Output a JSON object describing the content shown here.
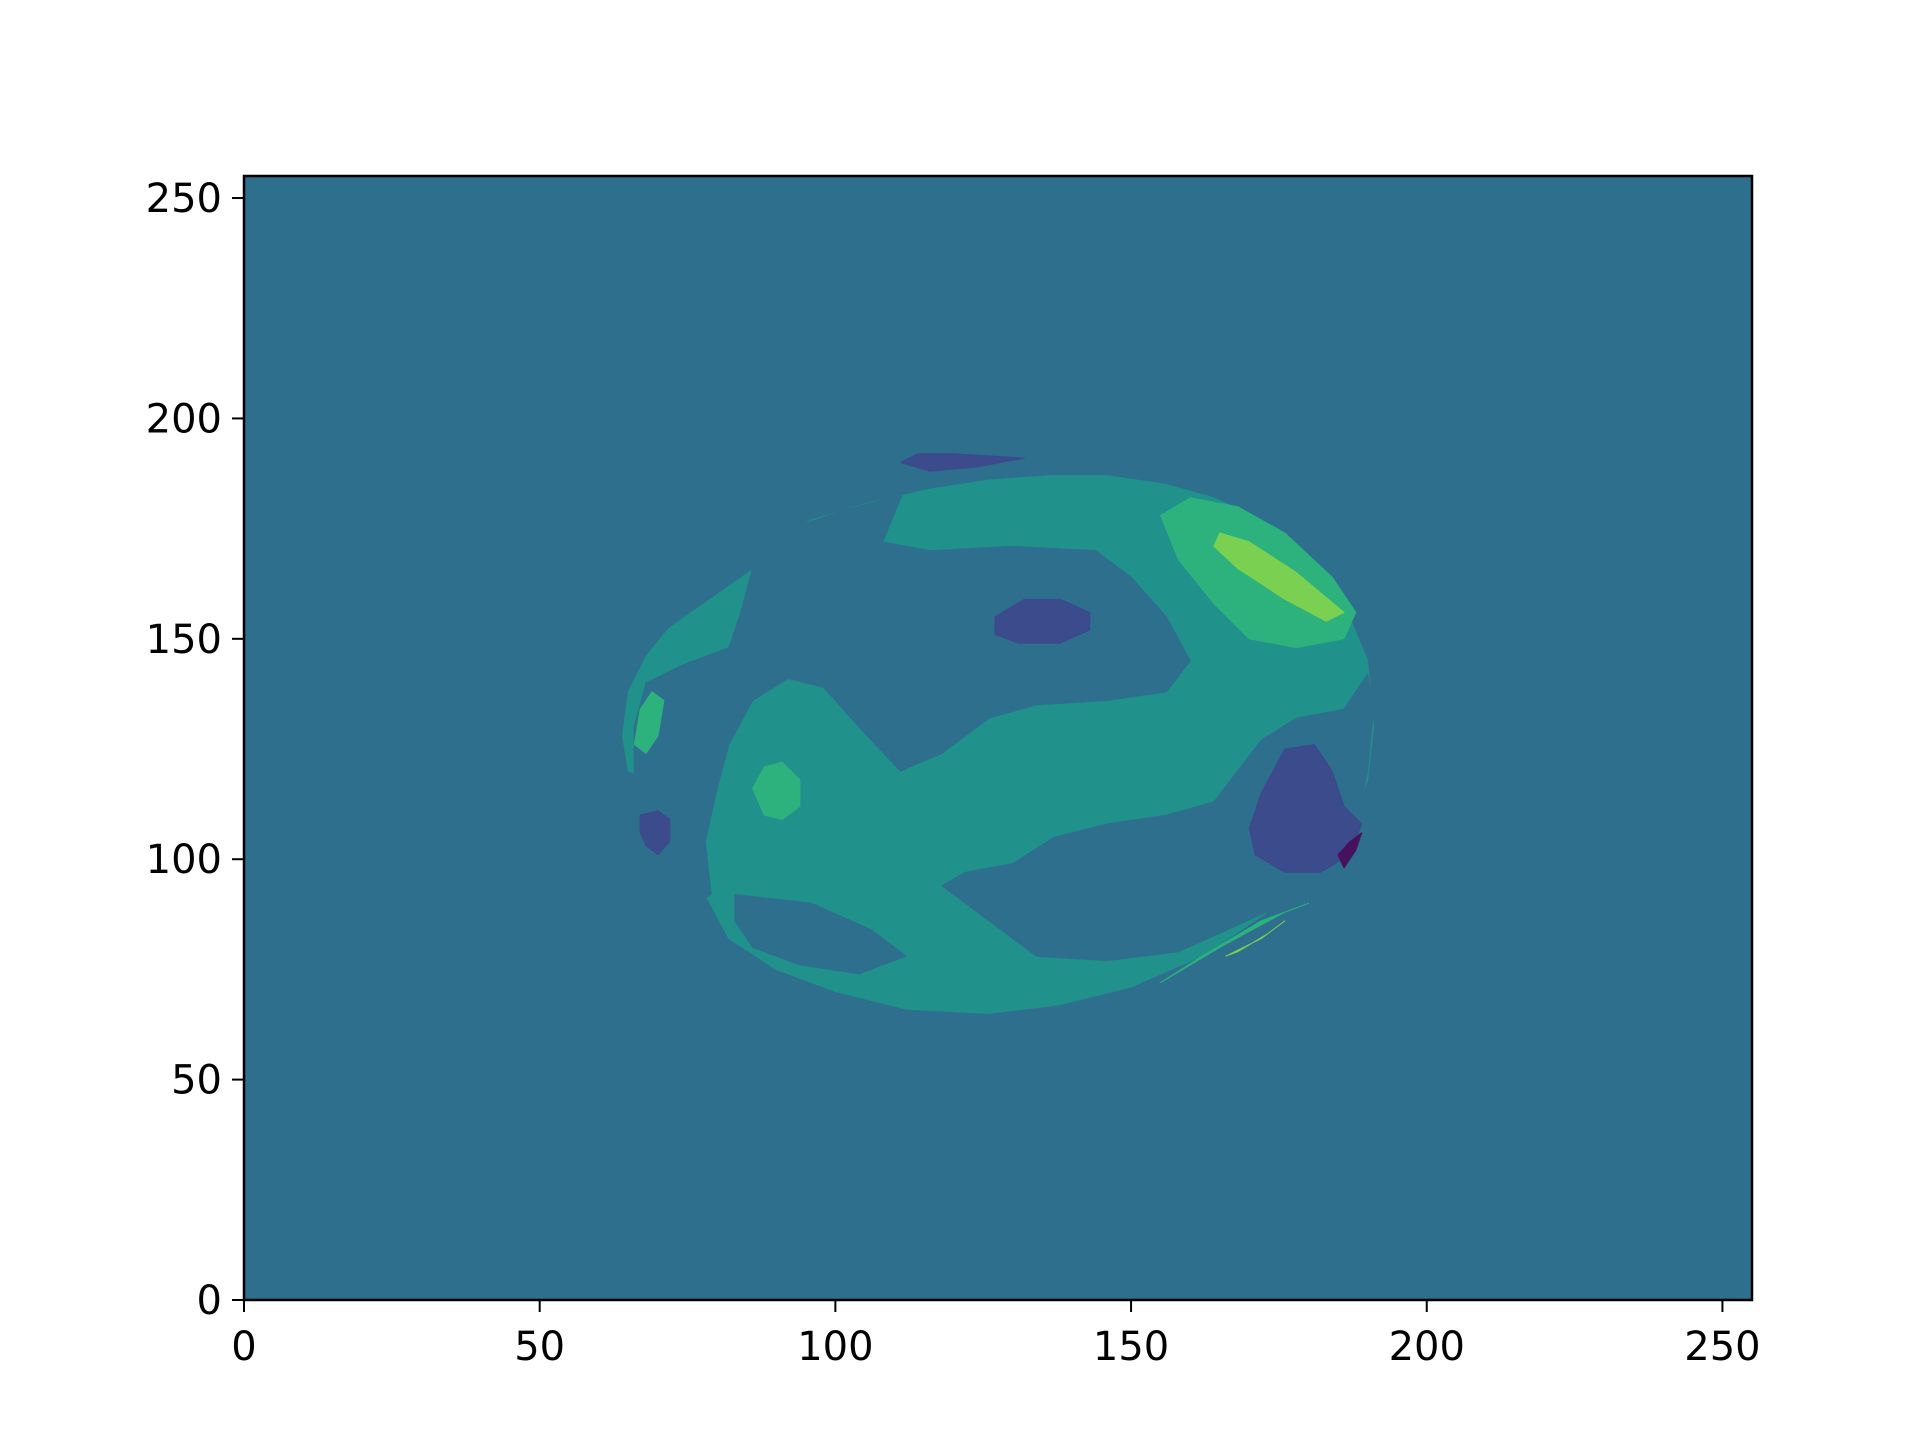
{
  "chart_data": {
    "type": "contourf",
    "title": "",
    "xlabel": "",
    "ylabel": "",
    "xlim": [
      0,
      255
    ],
    "ylim": [
      0,
      255
    ],
    "x_ticks": [
      0,
      50,
      100,
      150,
      200,
      250
    ],
    "y_ticks": [
      0,
      50,
      100,
      150,
      200,
      250
    ],
    "x_tick_labels": [
      "0",
      "50",
      "100",
      "150",
      "200",
      "250"
    ],
    "y_tick_labels": [
      "0",
      "50",
      "100",
      "150",
      "200",
      "250"
    ],
    "grid": false,
    "legend": "none",
    "colormap": "viridis",
    "colors": {
      "background_level": "#2e6f8e",
      "disk_level": "#21918c",
      "low_level": "#3b4b8b",
      "lowest_level": "#46125e",
      "high_level": "#2db27d",
      "highest_level": "#7ad151",
      "axes_edge": "#000000"
    },
    "regions": [
      {
        "name": "disk",
        "level": "disk_level",
        "points": [
          [
            65,
            138
          ],
          [
            68,
            146
          ],
          [
            74,
            156
          ],
          [
            82,
            166
          ],
          [
            88,
            171
          ],
          [
            96,
            177
          ],
          [
            106,
            181
          ],
          [
            116,
            184
          ],
          [
            126,
            186
          ],
          [
            136,
            187
          ],
          [
            146,
            187
          ],
          [
            156,
            185
          ],
          [
            164,
            182
          ],
          [
            172,
            177
          ],
          [
            180,
            169
          ],
          [
            186,
            158
          ],
          [
            190,
            145
          ],
          [
            191,
            130
          ],
          [
            190,
            118
          ],
          [
            186,
            105
          ],
          [
            180,
            95
          ],
          [
            172,
            87
          ],
          [
            162,
            78
          ],
          [
            150,
            71
          ],
          [
            138,
            67
          ],
          [
            126,
            65
          ],
          [
            112,
            66
          ],
          [
            100,
            70
          ],
          [
            90,
            75
          ],
          [
            82,
            82
          ],
          [
            78,
            92
          ],
          [
            76,
            104
          ],
          [
            74,
            114
          ],
          [
            70,
            118
          ],
          [
            65,
            120
          ],
          [
            64,
            128
          ]
        ]
      },
      {
        "name": "bg-lobe-upper-left",
        "level": "background_level",
        "points": [
          [
            68,
            149
          ],
          [
            72,
            157
          ],
          [
            78,
            166
          ],
          [
            86,
            172
          ],
          [
            101,
            179
          ],
          [
            112,
            183
          ],
          [
            128,
            188
          ],
          [
            112,
            185
          ],
          [
            108,
            172
          ],
          [
            116,
            170
          ],
          [
            130,
            171
          ],
          [
            144,
            170
          ],
          [
            150,
            164
          ],
          [
            156,
            155
          ],
          [
            160,
            145
          ],
          [
            156,
            138
          ],
          [
            146,
            136
          ],
          [
            134,
            135
          ],
          [
            126,
            132
          ],
          [
            118,
            124
          ],
          [
            111,
            120
          ],
          [
            104,
            130
          ],
          [
            98,
            139
          ],
          [
            92,
            141
          ],
          [
            86,
            136
          ],
          [
            82,
            126
          ],
          [
            80,
            116
          ],
          [
            78,
            104
          ],
          [
            79,
            92
          ],
          [
            74,
            88
          ],
          [
            72,
            96
          ],
          [
            72,
            108
          ],
          [
            70,
            114
          ],
          [
            66,
            118
          ],
          [
            66,
            130
          ],
          [
            68,
            140
          ],
          [
            74,
            144
          ],
          [
            82,
            148
          ],
          [
            84,
            156
          ],
          [
            86,
            166
          ]
        ]
      },
      {
        "name": "bg-lobe-right",
        "level": "background_level",
        "points": [
          [
            190,
            142
          ],
          [
            186,
            134
          ],
          [
            178,
            132
          ],
          [
            172,
            127
          ],
          [
            168,
            120
          ],
          [
            164,
            113
          ],
          [
            156,
            110
          ],
          [
            146,
            108
          ],
          [
            137,
            105
          ],
          [
            130,
            99
          ],
          [
            122,
            97
          ],
          [
            118,
            94
          ],
          [
            128,
            84
          ],
          [
            134,
            78
          ],
          [
            146,
            77
          ],
          [
            158,
            79
          ],
          [
            168,
            85
          ],
          [
            176,
            90
          ],
          [
            184,
            98
          ],
          [
            188,
            108
          ],
          [
            190,
            120
          ],
          [
            191,
            134
          ]
        ]
      },
      {
        "name": "bg-lobe-bottom",
        "level": "background_level",
        "points": [
          [
            83,
            92
          ],
          [
            96,
            90
          ],
          [
            106,
            84
          ],
          [
            112,
            78
          ],
          [
            104,
            74
          ],
          [
            94,
            76
          ],
          [
            86,
            80
          ],
          [
            83,
            86
          ]
        ]
      },
      {
        "name": "dark-spot-center",
        "level": "low_level",
        "points": [
          [
            127,
            155
          ],
          [
            132,
            159
          ],
          [
            138,
            159
          ],
          [
            143,
            156
          ],
          [
            143,
            152
          ],
          [
            138,
            149
          ],
          [
            131,
            149
          ],
          [
            127,
            151
          ]
        ]
      },
      {
        "name": "dark-spot-right",
        "level": "low_level",
        "points": [
          [
            176,
            125
          ],
          [
            181,
            126
          ],
          [
            184,
            120
          ],
          [
            186,
            112
          ],
          [
            189,
            108
          ],
          [
            187,
            101
          ],
          [
            182,
            97
          ],
          [
            176,
            97
          ],
          [
            171,
            101
          ],
          [
            170,
            107
          ],
          [
            172,
            115
          ]
        ]
      },
      {
        "name": "dark-spot-left",
        "level": "low_level",
        "points": [
          [
            67,
            110
          ],
          [
            70,
            111
          ],
          [
            72,
            109
          ],
          [
            72,
            104
          ],
          [
            70,
            101
          ],
          [
            68,
            103
          ],
          [
            67,
            106
          ]
        ]
      },
      {
        "name": "dark-strip-top",
        "level": "low_level",
        "points": [
          [
            111,
            190
          ],
          [
            114,
            192
          ],
          [
            120,
            192
          ],
          [
            132,
            191
          ],
          [
            124,
            189
          ],
          [
            116,
            188
          ]
        ]
      },
      {
        "name": "darkest-spot-right",
        "level": "lowest_level",
        "points": [
          [
            185,
            101
          ],
          [
            187,
            104
          ],
          [
            189,
            106
          ],
          [
            188,
            102
          ],
          [
            186,
            98
          ]
        ]
      },
      {
        "name": "bright-lobe-upper-right",
        "level": "high_level",
        "points": [
          [
            155,
            178
          ],
          [
            160,
            182
          ],
          [
            168,
            180
          ],
          [
            176,
            174
          ],
          [
            184,
            164
          ],
          [
            188,
            156
          ],
          [
            186,
            150
          ],
          [
            178,
            148
          ],
          [
            170,
            150
          ],
          [
            164,
            158
          ],
          [
            158,
            168
          ]
        ]
      },
      {
        "name": "bright-lobe-center-left",
        "level": "high_level",
        "points": [
          [
            86,
            116
          ],
          [
            88,
            121
          ],
          [
            91,
            122
          ],
          [
            94,
            118
          ],
          [
            94,
            112
          ],
          [
            91,
            109
          ],
          [
            88,
            110
          ]
        ]
      },
      {
        "name": "bright-lobe-far-left",
        "level": "high_level",
        "points": [
          [
            66,
            126
          ],
          [
            67,
            134
          ],
          [
            69,
            138
          ],
          [
            71,
            136
          ],
          [
            70,
            128
          ],
          [
            68,
            124
          ]
        ]
      },
      {
        "name": "bright-strip-bottom-right",
        "level": "high_level",
        "points": [
          [
            155,
            72
          ],
          [
            165,
            80
          ],
          [
            176,
            88
          ],
          [
            180,
            90
          ],
          [
            172,
            86
          ],
          [
            162,
            78
          ]
        ]
      },
      {
        "name": "brightest-lobe-upper-right",
        "level": "highest_level",
        "points": [
          [
            165,
            174
          ],
          [
            170,
            172
          ],
          [
            178,
            165
          ],
          [
            186,
            156
          ],
          [
            183,
            154
          ],
          [
            176,
            159
          ],
          [
            168,
            166
          ],
          [
            164,
            171
          ]
        ]
      },
      {
        "name": "brightest-strip-bottom-right",
        "level": "highest_level",
        "points": [
          [
            166,
            78
          ],
          [
            172,
            82
          ],
          [
            176,
            86
          ],
          [
            173,
            83
          ],
          [
            168,
            79
          ]
        ]
      }
    ]
  }
}
